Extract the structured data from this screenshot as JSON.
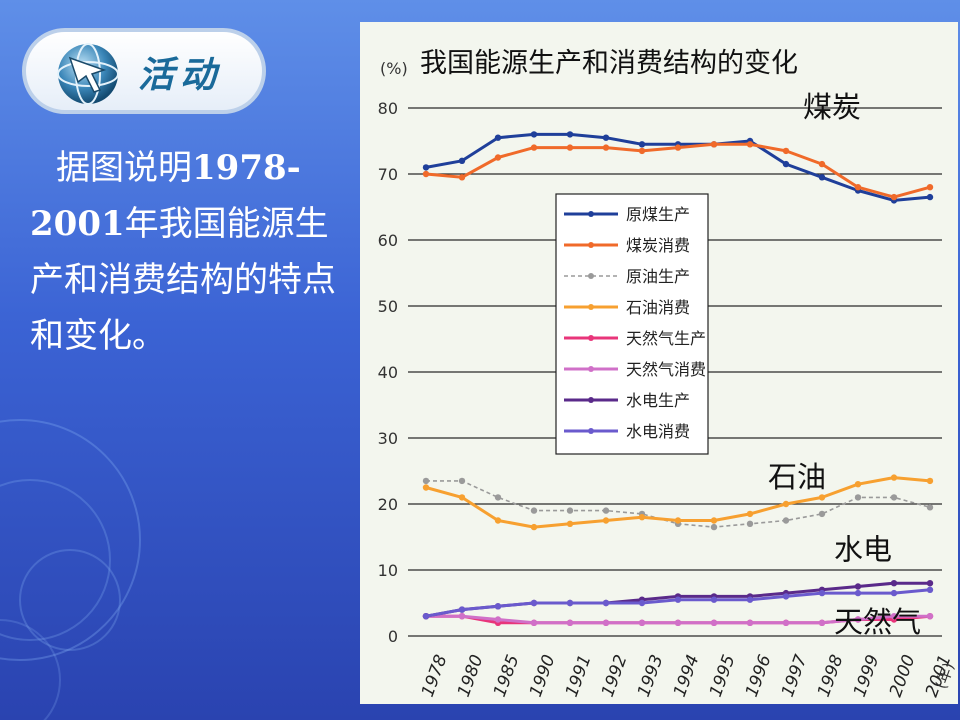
{
  "badge": {
    "text": "活动",
    "icon": "globe-arrow-icon"
  },
  "description": {
    "line_prefix": "据图说明",
    "years": "1978-2001",
    "line_suffix": "年我国能源生产和消费结构的特点和变化。"
  },
  "chart_data": {
    "type": "line",
    "title": "我国能源生产和消费结构的变化",
    "ylabel": "(%)",
    "xlabel": "(年)",
    "ylim": [
      0,
      80
    ],
    "yticks": [
      "80",
      "70",
      "60",
      "50",
      "40",
      "30",
      "20",
      "10",
      "0"
    ],
    "categories": [
      "1978",
      "1980",
      "1985",
      "1990",
      "1991",
      "1992",
      "1993",
      "1994",
      "1995",
      "1996",
      "1997",
      "1998",
      "1999",
      "2000",
      "2001"
    ],
    "grid": true,
    "legend_position": "center-left",
    "series": [
      {
        "name": "原煤生产",
        "color": "#1f3f9a",
        "values": [
          71,
          72,
          75.5,
          76,
          76,
          75.5,
          74.5,
          74.5,
          74.5,
          75,
          71.5,
          69.5,
          67.5,
          66,
          66.5
        ]
      },
      {
        "name": "煤炭消费",
        "color": "#f06a2a",
        "values": [
          70,
          69.5,
          72.5,
          74,
          74,
          74,
          73.5,
          74,
          74.5,
          74.5,
          73.5,
          71.5,
          68,
          66.5,
          68
        ]
      },
      {
        "name": "原油生产",
        "color": "#9a9a9a",
        "values": [
          23.5,
          23.5,
          21,
          19,
          19,
          19,
          18.5,
          17,
          16.5,
          17,
          17.5,
          18.5,
          21,
          21,
          19.5
        ]
      },
      {
        "name": "石油消费",
        "color": "#f7a030",
        "values": [
          22.5,
          21,
          17.5,
          16.5,
          17,
          17.5,
          18,
          17.5,
          17.5,
          18.5,
          20,
          21,
          23,
          24,
          23.5
        ]
      },
      {
        "name": "天然气生产",
        "color": "#e8357a",
        "values": [
          3,
          3,
          2,
          2,
          2,
          2,
          2,
          2,
          2,
          2,
          2,
          2,
          2.5,
          2.5,
          3
        ]
      },
      {
        "name": "天然气消费",
        "color": "#d070c8",
        "values": [
          3,
          3,
          2.5,
          2,
          2,
          2,
          2,
          2,
          2,
          2,
          2,
          2,
          2.5,
          3,
          3
        ]
      },
      {
        "name": "水电生产",
        "color": "#5a2a8a",
        "values": [
          3,
          4,
          4.5,
          5,
          5,
          5,
          5.5,
          6,
          6,
          6,
          6.5,
          7,
          7.5,
          8,
          8
        ]
      },
      {
        "name": "水电消费",
        "color": "#6a5acd",
        "values": [
          3,
          4,
          4.5,
          5,
          5,
          5,
          5,
          5.5,
          5.5,
          5.5,
          6,
          6.5,
          6.5,
          6.5,
          7
        ]
      }
    ],
    "annotations": [
      "煤炭",
      "石油",
      "水电",
      "天然气"
    ]
  }
}
